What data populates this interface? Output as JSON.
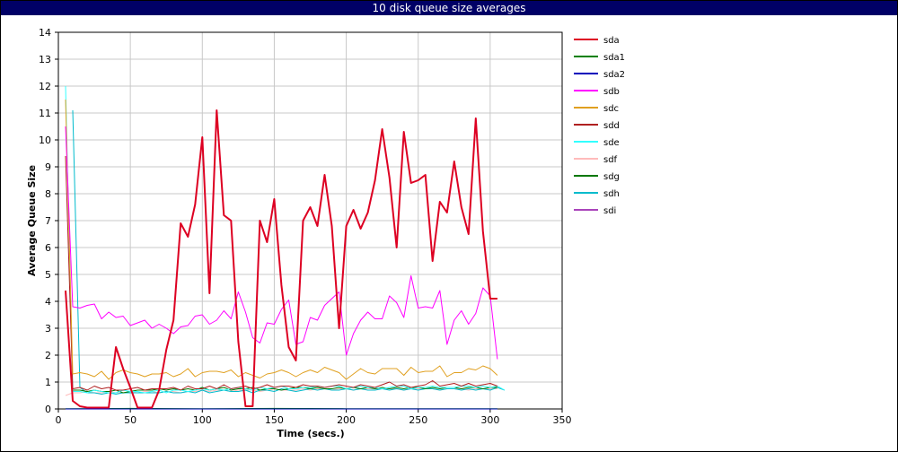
{
  "window": {
    "title": "10 disk queue size averages"
  },
  "chart_data": {
    "type": "line",
    "title": "10 disk queue size averages",
    "xlabel": "Time (secs.)",
    "ylabel": "Average Queue Size",
    "xlim": [
      0,
      350
    ],
    "ylim": [
      0,
      14
    ],
    "xticks": [
      0,
      50,
      100,
      150,
      200,
      250,
      300,
      350
    ],
    "yticks": [
      0,
      1,
      2,
      3,
      4,
      5,
      6,
      7,
      8,
      9,
      10,
      11,
      12,
      13,
      14
    ],
    "grid": true,
    "legend_position": "right",
    "series": [
      {
        "name": "sda",
        "color": "#dd0022",
        "width": 2,
        "x": [
          5,
          10,
          15,
          20,
          25,
          30,
          35,
          40,
          45,
          50,
          55,
          60,
          65,
          70,
          75,
          80,
          85,
          90,
          95,
          100,
          105,
          110,
          115,
          120,
          125,
          130,
          135,
          140,
          145,
          150,
          155,
          160,
          165,
          170,
          175,
          180,
          185,
          190,
          195,
          200,
          205,
          210,
          215,
          220,
          225,
          230,
          235,
          240,
          245,
          250,
          255,
          260,
          265,
          270,
          275,
          280,
          285,
          290,
          295,
          300,
          305
        ],
        "y": [
          4.4,
          0.3,
          0.1,
          0.05,
          0.05,
          0.05,
          0.05,
          2.3,
          1.5,
          0.8,
          0.05,
          0.05,
          0.05,
          0.7,
          2.2,
          3.3,
          6.9,
          6.4,
          7.6,
          10.1,
          4.3,
          11.1,
          7.2,
          7.0,
          2.5,
          0.1,
          0.1,
          7.0,
          6.2,
          7.8,
          4.6,
          2.3,
          1.8,
          7.0,
          7.5,
          6.8,
          8.7,
          6.8,
          3.0,
          6.8,
          7.4,
          6.7,
          7.3,
          8.5,
          10.4,
          8.6,
          6.0,
          10.3,
          8.4,
          8.5,
          8.7,
          5.5,
          7.7,
          7.3,
          9.2,
          7.5,
          6.5,
          10.8,
          6.6,
          4.1,
          4.1
        ]
      },
      {
        "name": "sda1",
        "color": "#008000",
        "width": 1,
        "x": [
          5,
          50,
          100,
          150,
          200,
          250,
          305
        ],
        "y": [
          0.01,
          0.02,
          0.01,
          0.02,
          0.01,
          0.01,
          0.01
        ]
      },
      {
        "name": "sda2",
        "color": "#0000bb",
        "width": 1,
        "x": [
          5,
          50,
          100,
          150,
          200,
          250,
          305
        ],
        "y": [
          0.0,
          0.0,
          0.0,
          0.0,
          0.0,
          0.0,
          0.0
        ]
      },
      {
        "name": "sdb",
        "color": "#ff00ff",
        "width": 1,
        "x": [
          5,
          10,
          15,
          20,
          25,
          30,
          35,
          40,
          45,
          50,
          55,
          60,
          65,
          70,
          75,
          80,
          85,
          90,
          95,
          100,
          105,
          110,
          115,
          120,
          125,
          130,
          135,
          140,
          145,
          150,
          155,
          160,
          165,
          170,
          175,
          180,
          185,
          190,
          195,
          200,
          205,
          210,
          215,
          220,
          225,
          230,
          235,
          240,
          245,
          250,
          255,
          260,
          265,
          270,
          275,
          280,
          285,
          290,
          295,
          300,
          305
        ],
        "y": [
          10.5,
          3.8,
          3.75,
          3.85,
          3.9,
          3.35,
          3.6,
          3.4,
          3.45,
          3.1,
          3.2,
          3.3,
          3.0,
          3.15,
          3.0,
          2.8,
          3.05,
          3.1,
          3.45,
          3.5,
          3.15,
          3.3,
          3.65,
          3.35,
          4.35,
          3.6,
          2.65,
          2.45,
          3.2,
          3.15,
          3.7,
          4.05,
          2.4,
          2.5,
          3.4,
          3.3,
          3.85,
          4.1,
          4.35,
          2.0,
          2.8,
          3.3,
          3.6,
          3.35,
          3.35,
          4.2,
          3.95,
          3.4,
          4.95,
          3.75,
          3.8,
          3.75,
          4.4,
          2.4,
          3.3,
          3.65,
          3.15,
          3.55,
          4.5,
          4.2,
          1.85
        ]
      },
      {
        "name": "sdc",
        "color": "#e0a020",
        "width": 1,
        "x": [
          5,
          10,
          15,
          20,
          25,
          30,
          35,
          40,
          45,
          50,
          55,
          60,
          65,
          70,
          75,
          80,
          85,
          90,
          95,
          100,
          105,
          110,
          115,
          120,
          125,
          130,
          135,
          140,
          145,
          150,
          155,
          160,
          165,
          170,
          175,
          180,
          185,
          190,
          195,
          200,
          205,
          210,
          215,
          220,
          225,
          230,
          235,
          240,
          245,
          250,
          255,
          260,
          265,
          270,
          275,
          280,
          285,
          290,
          295,
          300,
          305
        ],
        "y": [
          11.5,
          1.3,
          1.35,
          1.3,
          1.2,
          1.4,
          1.1,
          1.35,
          1.45,
          1.35,
          1.3,
          1.2,
          1.3,
          1.3,
          1.35,
          1.2,
          1.3,
          1.5,
          1.2,
          1.35,
          1.4,
          1.4,
          1.35,
          1.45,
          1.2,
          1.35,
          1.25,
          1.15,
          1.3,
          1.35,
          1.45,
          1.35,
          1.2,
          1.35,
          1.45,
          1.35,
          1.55,
          1.45,
          1.35,
          1.1,
          1.3,
          1.5,
          1.35,
          1.3,
          1.5,
          1.5,
          1.5,
          1.25,
          1.55,
          1.35,
          1.4,
          1.4,
          1.6,
          1.2,
          1.35,
          1.35,
          1.5,
          1.45,
          1.6,
          1.5,
          1.25
        ]
      },
      {
        "name": "sdd",
        "color": "#b02020",
        "width": 1,
        "x": [
          5,
          10,
          15,
          20,
          25,
          30,
          35,
          40,
          45,
          50,
          55,
          60,
          65,
          70,
          75,
          80,
          85,
          90,
          95,
          100,
          105,
          110,
          115,
          120,
          125,
          130,
          135,
          140,
          145,
          150,
          155,
          160,
          165,
          170,
          175,
          180,
          185,
          190,
          195,
          200,
          205,
          210,
          215,
          220,
          225,
          230,
          235,
          240,
          245,
          250,
          255,
          260,
          265,
          270,
          275,
          280,
          285,
          290,
          295,
          300,
          305
        ],
        "y": [
          9.4,
          0.75,
          0.8,
          0.7,
          0.85,
          0.75,
          0.8,
          0.7,
          0.7,
          0.75,
          0.8,
          0.7,
          0.75,
          0.75,
          0.75,
          0.8,
          0.7,
          0.85,
          0.75,
          0.75,
          0.85,
          0.75,
          0.9,
          0.75,
          0.8,
          0.85,
          0.75,
          0.8,
          0.9,
          0.8,
          0.85,
          0.85,
          0.8,
          0.9,
          0.85,
          0.85,
          0.8,
          0.85,
          0.9,
          0.85,
          0.8,
          0.9,
          0.85,
          0.8,
          0.9,
          1.0,
          0.85,
          0.9,
          0.8,
          0.85,
          0.9,
          1.05,
          0.85,
          0.9,
          0.95,
          0.85,
          0.95,
          0.85,
          0.9,
          0.95,
          0.85
        ]
      },
      {
        "name": "sde",
        "color": "#33ffff",
        "width": 1,
        "x": [
          5,
          10,
          15,
          20,
          25,
          30,
          35,
          40,
          45,
          50,
          55,
          60,
          65,
          70,
          75,
          80,
          85,
          90,
          95,
          100,
          105,
          110,
          115,
          120,
          125,
          130,
          135,
          140,
          145,
          150,
          155,
          160,
          165,
          170,
          175,
          180,
          185,
          190,
          195,
          200,
          205,
          210,
          215,
          220,
          225,
          230,
          235,
          240,
          245,
          250,
          255,
          260,
          265,
          270,
          275,
          280,
          285,
          290,
          295,
          300,
          305,
          310
        ],
        "y": [
          12.0,
          0.65,
          0.65,
          0.6,
          0.7,
          0.65,
          0.6,
          0.6,
          0.7,
          0.65,
          0.65,
          0.6,
          0.65,
          0.7,
          0.6,
          0.7,
          0.7,
          0.65,
          0.7,
          0.75,
          0.7,
          0.75,
          0.7,
          0.75,
          0.8,
          0.75,
          0.7,
          0.8,
          0.75,
          0.8,
          0.85,
          0.75,
          0.75,
          0.8,
          0.8,
          0.85,
          0.8,
          0.85,
          0.85,
          0.75,
          0.8,
          0.85,
          0.8,
          0.8,
          0.75,
          0.8,
          0.85,
          0.85,
          0.75,
          0.8,
          0.8,
          0.85,
          0.8,
          0.8,
          0.8,
          0.85,
          0.85,
          0.8,
          0.85,
          0.8,
          0.85,
          0.7
        ]
      },
      {
        "name": "sdf",
        "color": "#ffbbbb",
        "width": 1,
        "x": [
          5,
          10,
          15,
          20,
          25,
          30,
          35,
          40,
          45,
          50,
          55,
          60,
          65,
          70,
          75,
          80,
          85,
          90,
          95,
          100,
          105,
          110,
          115,
          120,
          125,
          130,
          135,
          140,
          145,
          150,
          155,
          160,
          165,
          170,
          175,
          180,
          185,
          190,
          195,
          200,
          205,
          210,
          215,
          220,
          225,
          230,
          235,
          240,
          245,
          250,
          255,
          260,
          265,
          270,
          275,
          280,
          285,
          290,
          295,
          300,
          305
        ],
        "y": [
          0.5,
          0.6,
          0.6,
          0.65,
          0.6,
          0.6,
          0.65,
          0.6,
          0.6,
          0.65,
          0.6,
          0.65,
          0.65,
          0.6,
          0.65,
          0.65,
          0.6,
          0.65,
          0.65,
          0.7,
          0.65,
          0.7,
          0.7,
          0.65,
          0.7,
          0.7,
          0.7,
          0.65,
          0.7,
          0.75,
          0.7,
          0.7,
          0.7,
          0.75,
          0.7,
          0.75,
          0.75,
          0.7,
          0.75,
          0.75,
          0.7,
          0.75,
          0.75,
          0.75,
          0.75,
          0.75,
          0.75,
          0.7,
          0.75,
          0.75,
          0.75,
          0.75,
          0.7,
          0.75,
          0.75,
          0.75,
          0.7,
          0.75,
          0.75,
          0.75,
          0.75
        ]
      },
      {
        "name": "sdg",
        "color": "#007700",
        "width": 1,
        "x": [
          10,
          15,
          20,
          25,
          30,
          35,
          40,
          45,
          50,
          55,
          60,
          65,
          70,
          75,
          80,
          85,
          90,
          95,
          100,
          105,
          110,
          115,
          120,
          125,
          130,
          135,
          140,
          145,
          150,
          155,
          160,
          165,
          170,
          175,
          180,
          185,
          190,
          195,
          200,
          205,
          210,
          215,
          220,
          225,
          230,
          235,
          240,
          245,
          250,
          255,
          260,
          265,
          270,
          275,
          280,
          285,
          290,
          295,
          300,
          305
        ],
        "y": [
          0.7,
          0.7,
          0.65,
          0.7,
          0.65,
          0.65,
          0.7,
          0.6,
          0.65,
          0.7,
          0.7,
          0.7,
          0.75,
          0.7,
          0.75,
          0.7,
          0.75,
          0.7,
          0.8,
          0.7,
          0.75,
          0.8,
          0.7,
          0.75,
          0.75,
          0.8,
          0.7,
          0.75,
          0.75,
          0.7,
          0.75,
          0.8,
          0.8,
          0.75,
          0.8,
          0.75,
          0.75,
          0.8,
          0.75,
          0.8,
          0.75,
          0.8,
          0.75,
          0.8,
          0.75,
          0.8,
          0.75,
          0.8,
          0.8,
          0.75,
          0.8,
          0.75,
          0.8,
          0.8,
          0.75,
          0.8,
          0.8,
          0.75,
          0.8,
          0.8
        ]
      },
      {
        "name": "sdh",
        "color": "#00bbcc",
        "width": 1,
        "x": [
          10,
          15,
          20,
          25,
          30,
          35,
          40,
          45,
          50,
          55,
          60,
          65,
          70,
          75,
          80,
          85,
          90,
          95,
          100,
          105,
          110,
          115,
          120,
          125,
          130,
          135,
          140,
          145,
          150,
          155,
          160,
          165,
          170,
          175,
          180,
          185,
          190,
          195,
          200,
          205,
          210,
          215,
          220,
          225,
          230,
          235,
          240,
          245,
          250,
          255,
          260,
          265,
          270,
          275,
          280,
          285,
          290,
          295,
          300,
          305,
          310
        ],
        "y": [
          11.1,
          0.8,
          0.6,
          0.6,
          0.55,
          0.6,
          0.55,
          0.6,
          0.6,
          0.6,
          0.6,
          0.6,
          0.6,
          0.65,
          0.6,
          0.6,
          0.65,
          0.6,
          0.7,
          0.6,
          0.65,
          0.7,
          0.65,
          0.65,
          0.7,
          0.6,
          0.7,
          0.7,
          0.65,
          0.75,
          0.7,
          0.65,
          0.7,
          0.75,
          0.7,
          0.75,
          0.7,
          0.7,
          0.75,
          0.7,
          0.75,
          0.7,
          0.7,
          0.75,
          0.7,
          0.75,
          0.7,
          0.75,
          0.7,
          0.75,
          0.75,
          0.7,
          0.75,
          0.75,
          0.7,
          0.75,
          0.7,
          0.75,
          0.7,
          0.8,
          0.7
        ]
      },
      {
        "name": "sdi",
        "color": "#aa44bb",
        "width": 1,
        "x": [
          5,
          10,
          15,
          20,
          25,
          30,
          35,
          40,
          45,
          50,
          55,
          60,
          65,
          70,
          75,
          80,
          85,
          90,
          95,
          100,
          105,
          110,
          115,
          120,
          125,
          130,
          135,
          140,
          145,
          150,
          155,
          160,
          165,
          170,
          175,
          180,
          185,
          190,
          195,
          200,
          205,
          210,
          215,
          220,
          225,
          230,
          235,
          240,
          245,
          250,
          255,
          260,
          265,
          270,
          275,
          280,
          285,
          290,
          295,
          300,
          305
        ],
        "y": [
          0.5,
          0.65,
          0.6,
          0.55,
          0.55,
          0.6,
          0.6,
          0.55,
          0.6,
          0.65,
          0.6,
          0.65,
          0.6,
          0.65,
          0.7,
          0.65,
          0.7,
          0.65,
          0.7,
          0.65,
          0.75,
          0.7,
          0.7,
          0.75,
          0.7,
          0.8,
          0.7,
          0.75,
          0.75,
          0.7,
          0.8,
          0.75,
          0.75,
          0.8,
          0.75,
          0.8,
          0.75,
          0.8,
          0.85,
          0.75,
          0.8,
          0.8,
          0.75,
          0.85,
          0.8,
          0.75,
          0.85,
          0.8,
          0.8,
          0.75,
          0.85,
          0.8,
          0.75,
          0.85,
          0.7,
          0.7,
          0.75,
          0.8,
          0.85,
          0.8,
          0.85
        ]
      }
    ]
  }
}
